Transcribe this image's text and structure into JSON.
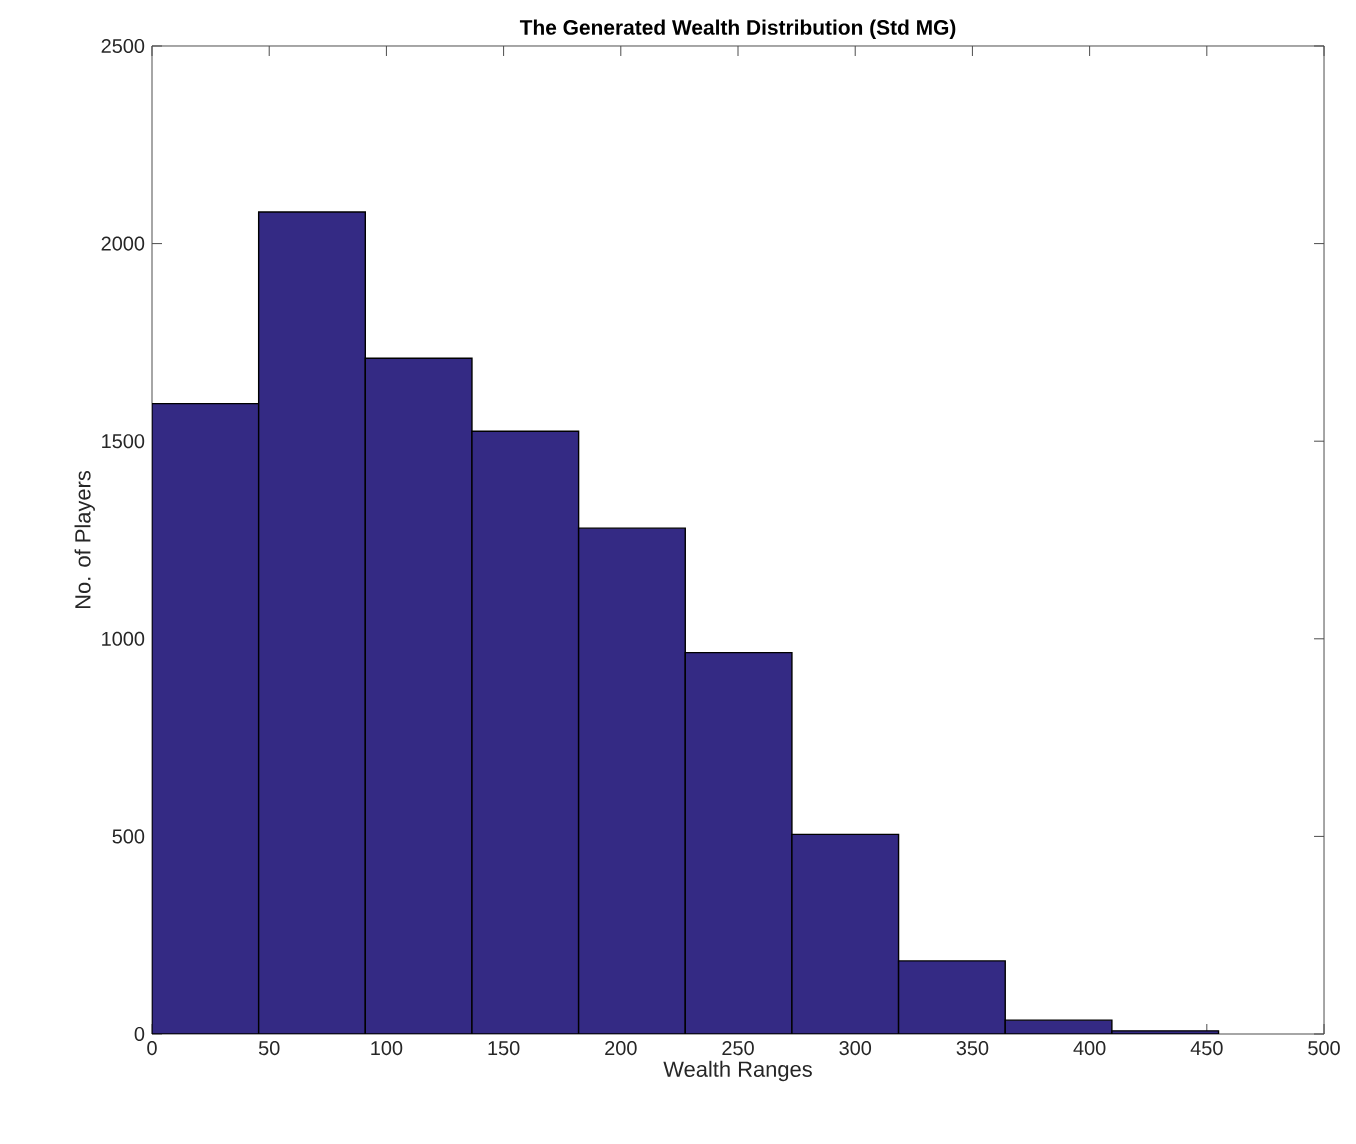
{
  "chart_data": {
    "type": "histogram",
    "title": "The Generated Wealth Distribution (Std MG)",
    "xlabel": "Wealth Ranges",
    "ylabel": "No. of Players",
    "bins": [
      0,
      45.5,
      91,
      136.5,
      182,
      227.5,
      273,
      318.5,
      364,
      409.5,
      455
    ],
    "values": [
      1595,
      2080,
      1710,
      1525,
      1280,
      965,
      505,
      185,
      35,
      8
    ],
    "color": "#342a84",
    "xlim": [
      0,
      500
    ],
    "ylim": [
      0,
      2500
    ],
    "xticks": [
      0,
      50,
      100,
      150,
      200,
      250,
      300,
      350,
      400,
      450,
      500
    ],
    "yticks": [
      0,
      500,
      1000,
      1500,
      2000,
      2500
    ],
    "grid": false
  }
}
